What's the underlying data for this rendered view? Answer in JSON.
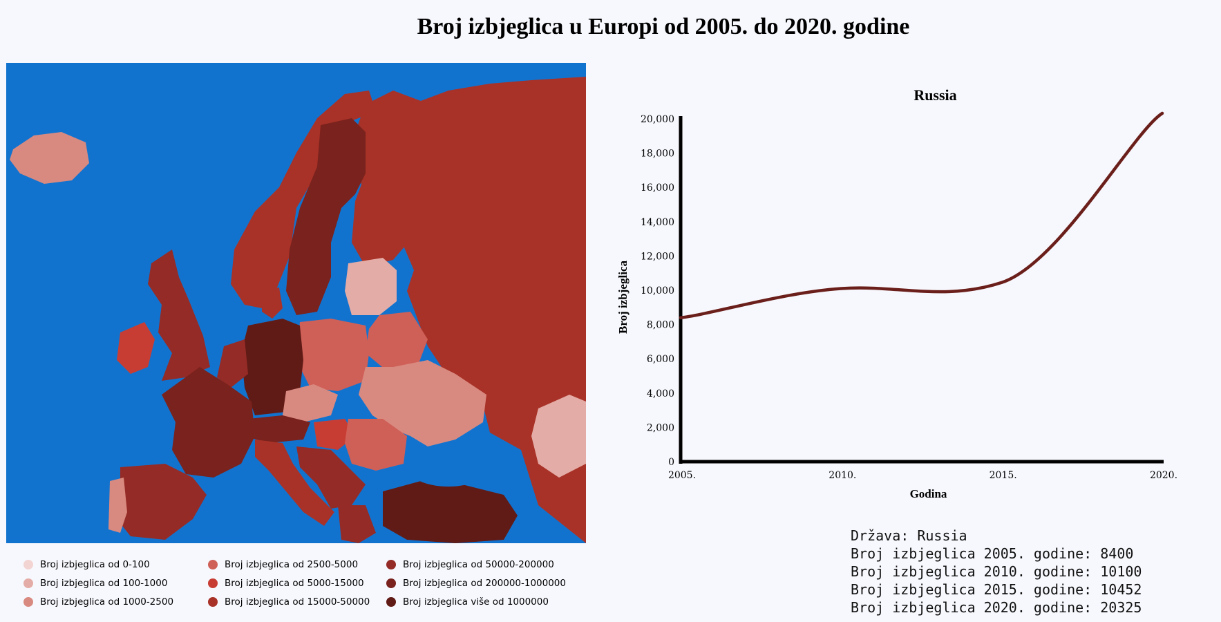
{
  "title": "Broj izbjeglica u Europi od 2005. do 2020. godine",
  "colors": {
    "sea": "#1273cf",
    "accent_line": "#6b1f1b"
  },
  "legend": [
    {
      "label": "Broj izbjeglica od 0-100",
      "color": "#f2d4d2"
    },
    {
      "label": "Broj izbjeglica od 100-1000",
      "color": "#e4aca6"
    },
    {
      "label": "Broj izbjeglica od 1000-2500",
      "color": "#d98a80"
    },
    {
      "label": "Broj izbjeglica od 2500-5000",
      "color": "#cf6058"
    },
    {
      "label": "Broj izbjeglica od 5000-15000",
      "color": "#c83d33"
    },
    {
      "label": "Broj izbjeglica od 15000-50000",
      "color": "#a83228"
    },
    {
      "label": "Broj izbjeglica od 50000-200000",
      "color": "#952b26"
    },
    {
      "label": "Broj izbjeglica od 200000-1000000",
      "color": "#7a221d"
    },
    {
      "label": "Broj izbjeglica više od 1000000",
      "color": "#611b16"
    }
  ],
  "chart_data": {
    "type": "line",
    "title": "Russia",
    "xlabel": "Godina",
    "ylabel": "Broj izbjeglica",
    "x": [
      2005,
      2010,
      2015,
      2020
    ],
    "x_tick_labels": [
      "2005.",
      "2010.",
      "2015.",
      "2020."
    ],
    "series": [
      {
        "values": [
          8400,
          10100,
          10452,
          20325
        ]
      }
    ],
    "ylim": [
      0,
      20000
    ],
    "y_ticks": [
      0,
      2000,
      4000,
      6000,
      8000,
      10000,
      12000,
      14000,
      16000,
      18000,
      20000
    ],
    "y_tick_labels": [
      "0",
      "2,000",
      "4,000",
      "6,000",
      "8,000",
      "10,000",
      "12,000",
      "14,000",
      "16,000",
      "18,000",
      "20,000"
    ],
    "grid": false,
    "line_color": "#6b1f1b"
  },
  "info": {
    "country": "Država: Russia",
    "line_2005": "Broj izbjeglica 2005. godine: 8400",
    "line_2010": "Broj izbjeglica 2010. godine: 10100",
    "line_2015": "Broj izbjeglica 2015. godine: 10452",
    "line_2020": "Broj izbjeglica 2020. godine: 20325"
  }
}
